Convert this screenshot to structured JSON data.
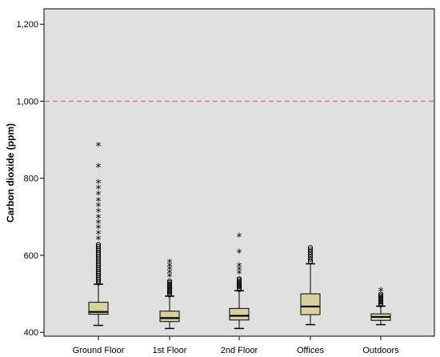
{
  "chart_data": {
    "type": "boxplot",
    "ylabel": "Carbon dioxide (ppm)",
    "xlabel": "",
    "ylim": [
      390,
      1240
    ],
    "yticks": [
      400,
      600,
      800,
      1000,
      1200
    ],
    "ytick_labels": [
      "400",
      "600",
      "800",
      "1,000",
      "1,200"
    ],
    "grid": false,
    "reference_line": {
      "y": 1000,
      "style": "dashed",
      "color": "#e8675f"
    },
    "colors": {
      "plot_bg": "#e0e0e0",
      "box_fill": "#d6d3a0",
      "stroke": "#000000"
    },
    "categories": [
      "Ground Floor",
      "1st Floor",
      "2nd Floor",
      "Offices",
      "Outdoors"
    ],
    "boxes": [
      {
        "name": "Ground Floor",
        "whisker_low": 418,
        "q1": 447,
        "median": 453,
        "q3": 478,
        "whisker_high": 525,
        "outliers": [
          528,
          533,
          538,
          543,
          548,
          553,
          558,
          563,
          568,
          573,
          578,
          583,
          588,
          593,
          598,
          603,
          608,
          613,
          618,
          623,
          628
        ],
        "extremes": [
          640,
          655,
          670,
          683,
          697,
          712,
          727,
          740,
          757,
          772,
          787,
          828,
          884
        ]
      },
      {
        "name": "1st Floor",
        "whisker_low": 410,
        "q1": 428,
        "median": 437,
        "q3": 455,
        "whisker_high": 494,
        "outliers": [
          497,
          501,
          505,
          509,
          513,
          517,
          521,
          525,
          529,
          533
        ],
        "extremes": [
          544,
          553,
          562,
          571,
          580
        ]
      },
      {
        "name": "2nd Floor",
        "whisker_low": 410,
        "q1": 432,
        "median": 443,
        "q3": 462,
        "whisker_high": 508,
        "outliers": [
          511,
          515,
          519,
          523,
          527,
          531,
          535,
          539
        ],
        "extremes": [
          552,
          561,
          571,
          606,
          648
        ]
      },
      {
        "name": "Offices",
        "whisker_low": 420,
        "q1": 446,
        "median": 467,
        "q3": 500,
        "whisker_high": 578,
        "outliers": [
          584,
          590,
          596,
          602,
          608,
          614,
          620
        ],
        "extremes": []
      },
      {
        "name": "Outdoors",
        "whisker_low": 420,
        "q1": 431,
        "median": 440,
        "q3": 448,
        "whisker_high": 468,
        "outliers": [
          471,
          475,
          479,
          483,
          487,
          491,
          495,
          499
        ],
        "extremes": [
          506
        ]
      }
    ]
  }
}
